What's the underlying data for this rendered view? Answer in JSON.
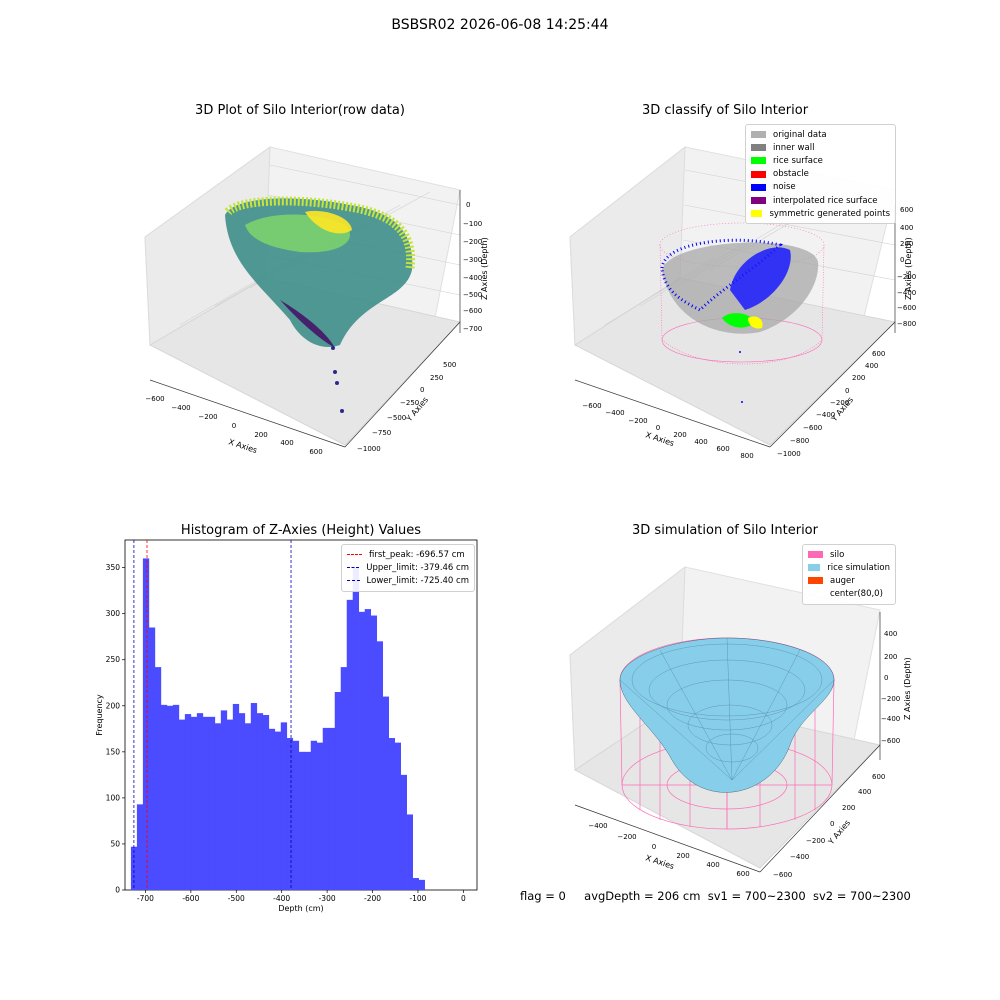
{
  "figure_title": "BSBSR02 2026-06-08 14:25:44",
  "status": {
    "flag": "flag = 0",
    "avg_depth": "avgDepth = 206 cm",
    "sv1": "sv1 = 700~2300",
    "sv2": "sv2 = 700~2300"
  },
  "colors": {
    "histogram_bar": "#4b4bff",
    "silo": "#ff69b4",
    "rice_simulation": "#87ceeb",
    "auger": "#ff4500",
    "noise": "#0000ff",
    "rice_surface": "#00ff00",
    "obstacle": "#ff0000",
    "symmetric": "#ffff00"
  },
  "chart_data": [
    {
      "type": "scatter3d",
      "title": "3D Plot of Silo Interior(row data)",
      "xlabel": "X Axies",
      "ylabel": "Y Axies",
      "zlabel": "Z Axies (Depth)",
      "x_ticks": [
        "−600",
        "−400",
        "−200",
        "0",
        "200",
        "400",
        "600"
      ],
      "y_ticks": [
        "−1000",
        "−750",
        "−500",
        "−250",
        "0",
        "250",
        "500"
      ],
      "z_ticks": [
        "0",
        "−100",
        "−200",
        "−300",
        "−400",
        "−500",
        "−600",
        "−700"
      ],
      "colormap": "viridis"
    },
    {
      "type": "scatter3d",
      "title": "3D classify of Silo Interior",
      "xlabel": "X Axies",
      "ylabel": "Y Axies",
      "zlabel": "Z Axies (Depth)",
      "x_ticks": [
        "−600",
        "−400",
        "−200",
        "0",
        "200",
        "400",
        "600",
        "800"
      ],
      "y_ticks": [
        "−1000",
        "−800",
        "−600",
        "−400",
        "−200",
        "0",
        "200",
        "400",
        "600"
      ],
      "z_ticks": [
        "600",
        "400",
        "200",
        "0",
        "−200",
        "−400",
        "−600",
        "−800"
      ],
      "legend": [
        {
          "label": "original data",
          "color": "#b0b0b0"
        },
        {
          "label": "inner wall",
          "color": "#808080"
        },
        {
          "label": "rice surface",
          "color": "#00ff00"
        },
        {
          "label": "obstacle",
          "color": "#ff0000"
        },
        {
          "label": "noise",
          "color": "#0000ff"
        },
        {
          "label": "interpolated rice surface",
          "color": "#800080"
        },
        {
          "label": "symmetric generated points",
          "color": "#ffff00"
        }
      ]
    },
    {
      "type": "bar",
      "title": "Histogram of Z-Axies (Height) Values",
      "xlabel": "Depth (cm)",
      "ylabel": "Frequency",
      "bin_start": -732,
      "bin_width": 13.2,
      "values": [
        47,
        93,
        360,
        285,
        242,
        201,
        200,
        201,
        185,
        191,
        188,
        192,
        188,
        188,
        181,
        195,
        185,
        202,
        192,
        181,
        203,
        192,
        190,
        175,
        172,
        182,
        165,
        162,
        150,
        150,
        162,
        160,
        176,
        176,
        215,
        242,
        315,
        350,
        302,
        305,
        298,
        270,
        210,
        165,
        160,
        125,
        82,
        13,
        11
      ],
      "xlim": [
        -745,
        30
      ],
      "ylim": [
        0,
        380
      ],
      "x_ticks": [
        -700,
        -600,
        -500,
        -400,
        -300,
        -200,
        -100,
        0
      ],
      "y_ticks": [
        0,
        50,
        100,
        150,
        200,
        250,
        300,
        350
      ],
      "vlines": [
        {
          "label": "first_peak: -696.57 cm",
          "x": -696.57,
          "color": "#ff0000"
        },
        {
          "label": "Upper_limit: -379.46 cm",
          "x": -379.46,
          "color": "#0000bb"
        },
        {
          "label": "Lower_limit: -725.40 cm",
          "x": -725.4,
          "color": "#0000bb"
        }
      ],
      "legend_position": "top-right"
    },
    {
      "type": "surface3d",
      "title": "3D simulation of Silo Interior",
      "xlabel": "X Axies",
      "ylabel": "Y Axies",
      "zlabel": "Z Axies (Depth)",
      "x_ticks": [
        "−400",
        "−200",
        "0",
        "200",
        "400",
        "600"
      ],
      "y_ticks": [
        "−600",
        "−400",
        "−200",
        "0",
        "200",
        "400",
        "600"
      ],
      "z_ticks": [
        "400",
        "200",
        "0",
        "−200",
        "−400",
        "−600"
      ],
      "legend": [
        {
          "label": "silo",
          "color": "#ff69b4"
        },
        {
          "label": "rice simulation",
          "color": "#87ceeb"
        },
        {
          "label": "auger",
          "color": "#ff4500"
        },
        {
          "label": "center(80,0)",
          "color": ""
        }
      ]
    }
  ]
}
